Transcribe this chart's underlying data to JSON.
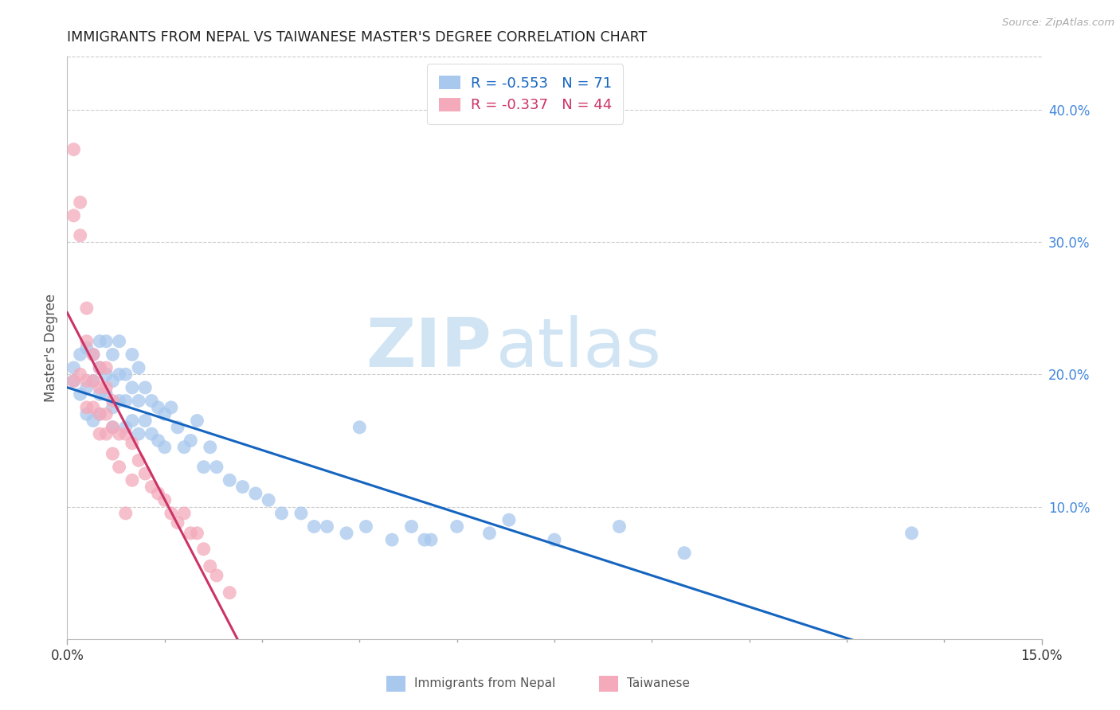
{
  "title": "IMMIGRANTS FROM NEPAL VS TAIWANESE MASTER'S DEGREE CORRELATION CHART",
  "source": "Source: ZipAtlas.com",
  "ylabel": "Master's Degree",
  "watermark_zip": "ZIP",
  "watermark_atlas": "atlas",
  "legend_blue_r": "-0.553",
  "legend_blue_n": "71",
  "legend_pink_r": "-0.337",
  "legend_pink_n": "44",
  "legend_blue_label": "Immigrants from Nepal",
  "legend_pink_label": "Taiwanese",
  "xlim": [
    0.0,
    0.15
  ],
  "ylim": [
    0.0,
    0.44
  ],
  "right_yticks": [
    0.1,
    0.2,
    0.3,
    0.4
  ],
  "right_yticklabels": [
    "10.0%",
    "20.0%",
    "30.0%",
    "40.0%"
  ],
  "xtick_labeled": [
    0.0,
    0.15
  ],
  "xtick_minor": [
    0.015,
    0.03,
    0.045,
    0.06,
    0.075,
    0.09,
    0.105,
    0.12,
    0.135
  ],
  "blue_color": "#A8C8EE",
  "pink_color": "#F4AABB",
  "blue_line_color": "#1565C0",
  "pink_line_color": "#CC3366",
  "grid_color": "#CCCCCC",
  "title_color": "#222222",
  "right_tick_color": "#4488DD",
  "watermark_color": "#D0E4F4",
  "blue_x": [
    0.001,
    0.001,
    0.002,
    0.002,
    0.003,
    0.003,
    0.003,
    0.004,
    0.004,
    0.004,
    0.005,
    0.005,
    0.005,
    0.005,
    0.006,
    0.006,
    0.006,
    0.007,
    0.007,
    0.007,
    0.007,
    0.008,
    0.008,
    0.008,
    0.009,
    0.009,
    0.009,
    0.01,
    0.01,
    0.01,
    0.011,
    0.011,
    0.011,
    0.012,
    0.012,
    0.013,
    0.013,
    0.014,
    0.014,
    0.015,
    0.015,
    0.016,
    0.017,
    0.018,
    0.019,
    0.02,
    0.021,
    0.022,
    0.023,
    0.025,
    0.027,
    0.029,
    0.031,
    0.033,
    0.036,
    0.038,
    0.04,
    0.043,
    0.046,
    0.05,
    0.053,
    0.056,
    0.06,
    0.065,
    0.068,
    0.075,
    0.085,
    0.095,
    0.045,
    0.13,
    0.055
  ],
  "blue_y": [
    0.195,
    0.205,
    0.215,
    0.185,
    0.22,
    0.19,
    0.17,
    0.215,
    0.195,
    0.165,
    0.225,
    0.205,
    0.185,
    0.17,
    0.225,
    0.2,
    0.185,
    0.215,
    0.195,
    0.175,
    0.16,
    0.225,
    0.2,
    0.18,
    0.2,
    0.18,
    0.16,
    0.215,
    0.19,
    0.165,
    0.205,
    0.18,
    0.155,
    0.19,
    0.165,
    0.18,
    0.155,
    0.175,
    0.15,
    0.17,
    0.145,
    0.175,
    0.16,
    0.145,
    0.15,
    0.165,
    0.13,
    0.145,
    0.13,
    0.12,
    0.115,
    0.11,
    0.105,
    0.095,
    0.095,
    0.085,
    0.085,
    0.08,
    0.085,
    0.075,
    0.085,
    0.075,
    0.085,
    0.08,
    0.09,
    0.075,
    0.085,
    0.065,
    0.16,
    0.08,
    0.075
  ],
  "pink_x": [
    0.001,
    0.001,
    0.001,
    0.002,
    0.002,
    0.002,
    0.003,
    0.003,
    0.003,
    0.003,
    0.004,
    0.004,
    0.004,
    0.005,
    0.005,
    0.005,
    0.005,
    0.006,
    0.006,
    0.006,
    0.006,
    0.007,
    0.007,
    0.007,
    0.008,
    0.008,
    0.009,
    0.009,
    0.01,
    0.01,
    0.011,
    0.012,
    0.013,
    0.014,
    0.015,
    0.016,
    0.017,
    0.018,
    0.019,
    0.02,
    0.021,
    0.022,
    0.023,
    0.025
  ],
  "pink_y": [
    0.37,
    0.32,
    0.195,
    0.33,
    0.305,
    0.2,
    0.25,
    0.225,
    0.195,
    0.175,
    0.215,
    0.195,
    0.175,
    0.205,
    0.19,
    0.17,
    0.155,
    0.205,
    0.19,
    0.17,
    0.155,
    0.18,
    0.16,
    0.14,
    0.155,
    0.13,
    0.155,
    0.095,
    0.148,
    0.12,
    0.135,
    0.125,
    0.115,
    0.11,
    0.105,
    0.095,
    0.088,
    0.095,
    0.08,
    0.08,
    0.068,
    0.055,
    0.048,
    0.035
  ]
}
